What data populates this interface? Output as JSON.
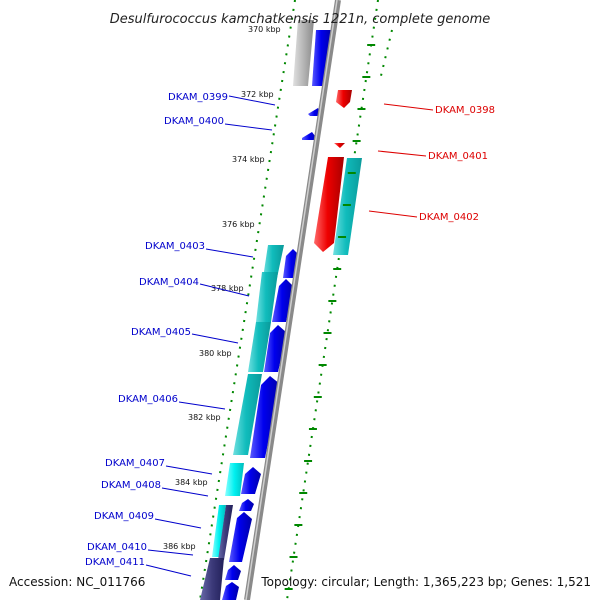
{
  "title": "Desulfurococcus kamchatkensis 1221n, complete genome",
  "footer": {
    "accession": "Accession: NC_011766",
    "summary": "Topology: circular; Length: 1,365,223 bp; Genes: 1,521"
  },
  "colors": {
    "forward_label": "#0000cc",
    "reverse_label": "#dd0000",
    "cds": "#0000ee",
    "rna": "#ff0000",
    "teal": "#20c6c6",
    "cyan": "#00ffff",
    "gray": "#aaaaaa",
    "navy": "#3c3a7a",
    "tick": "#008800",
    "backbone": "#888888"
  },
  "ticks": [
    {
      "label": "370 kbp"
    },
    {
      "label": "372 kbp"
    },
    {
      "label": "374 kbp"
    },
    {
      "label": "376 kbp"
    },
    {
      "label": "378 kbp"
    },
    {
      "label": "380 kbp"
    },
    {
      "label": "382 kbp"
    },
    {
      "label": "384 kbp"
    },
    {
      "label": "386 kbp"
    }
  ],
  "forward_labels": [
    "DKAM_0399",
    "DKAM_0400",
    "DKAM_0403",
    "DKAM_0404",
    "DKAM_0405",
    "DKAM_0406",
    "DKAM_0407",
    "DKAM_0408",
    "DKAM_0409",
    "DKAM_0410",
    "DKAM_0411"
  ],
  "reverse_labels": [
    "DKAM_0398",
    "DKAM_0401",
    "DKAM_0402"
  ]
}
